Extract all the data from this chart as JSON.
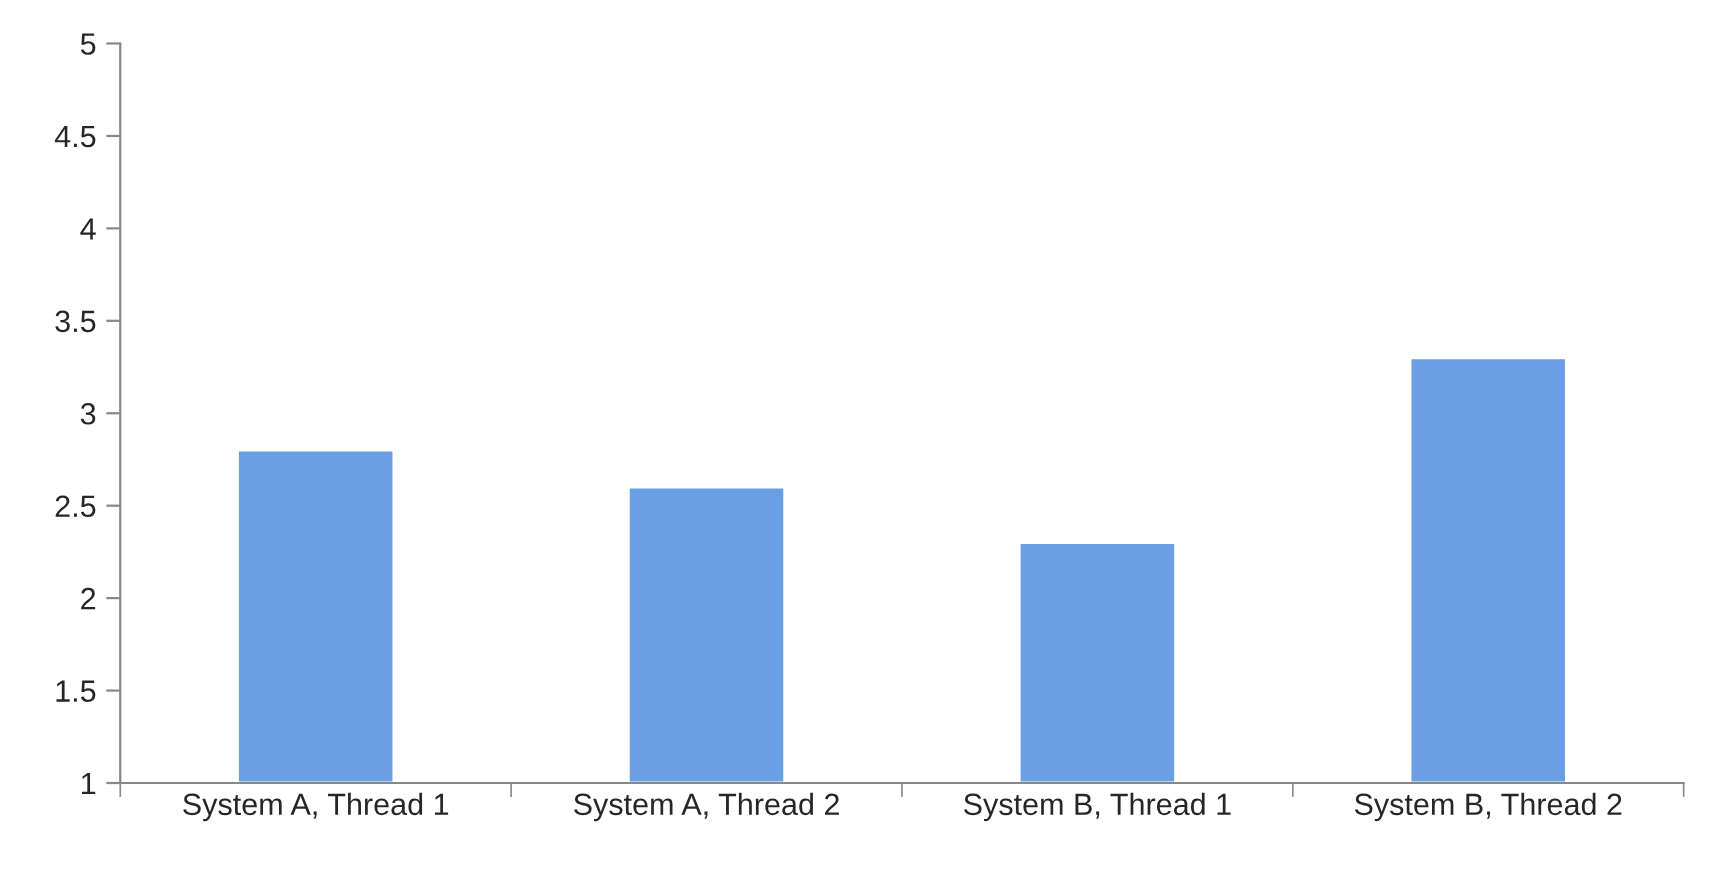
{
  "chart_data": {
    "type": "bar",
    "categories": [
      "System A, Thread 1",
      "System A, Thread 2",
      "System B, Thread 1",
      "System B, Thread 2"
    ],
    "values": [
      2.8,
      2.6,
      2.3,
      3.3
    ],
    "color": "#6a9fe6",
    "ylim": [
      1,
      5
    ],
    "yticks": [
      1,
      1.5,
      2,
      2.5,
      3,
      3.5,
      4,
      4.5,
      5
    ],
    "grid": false
  }
}
